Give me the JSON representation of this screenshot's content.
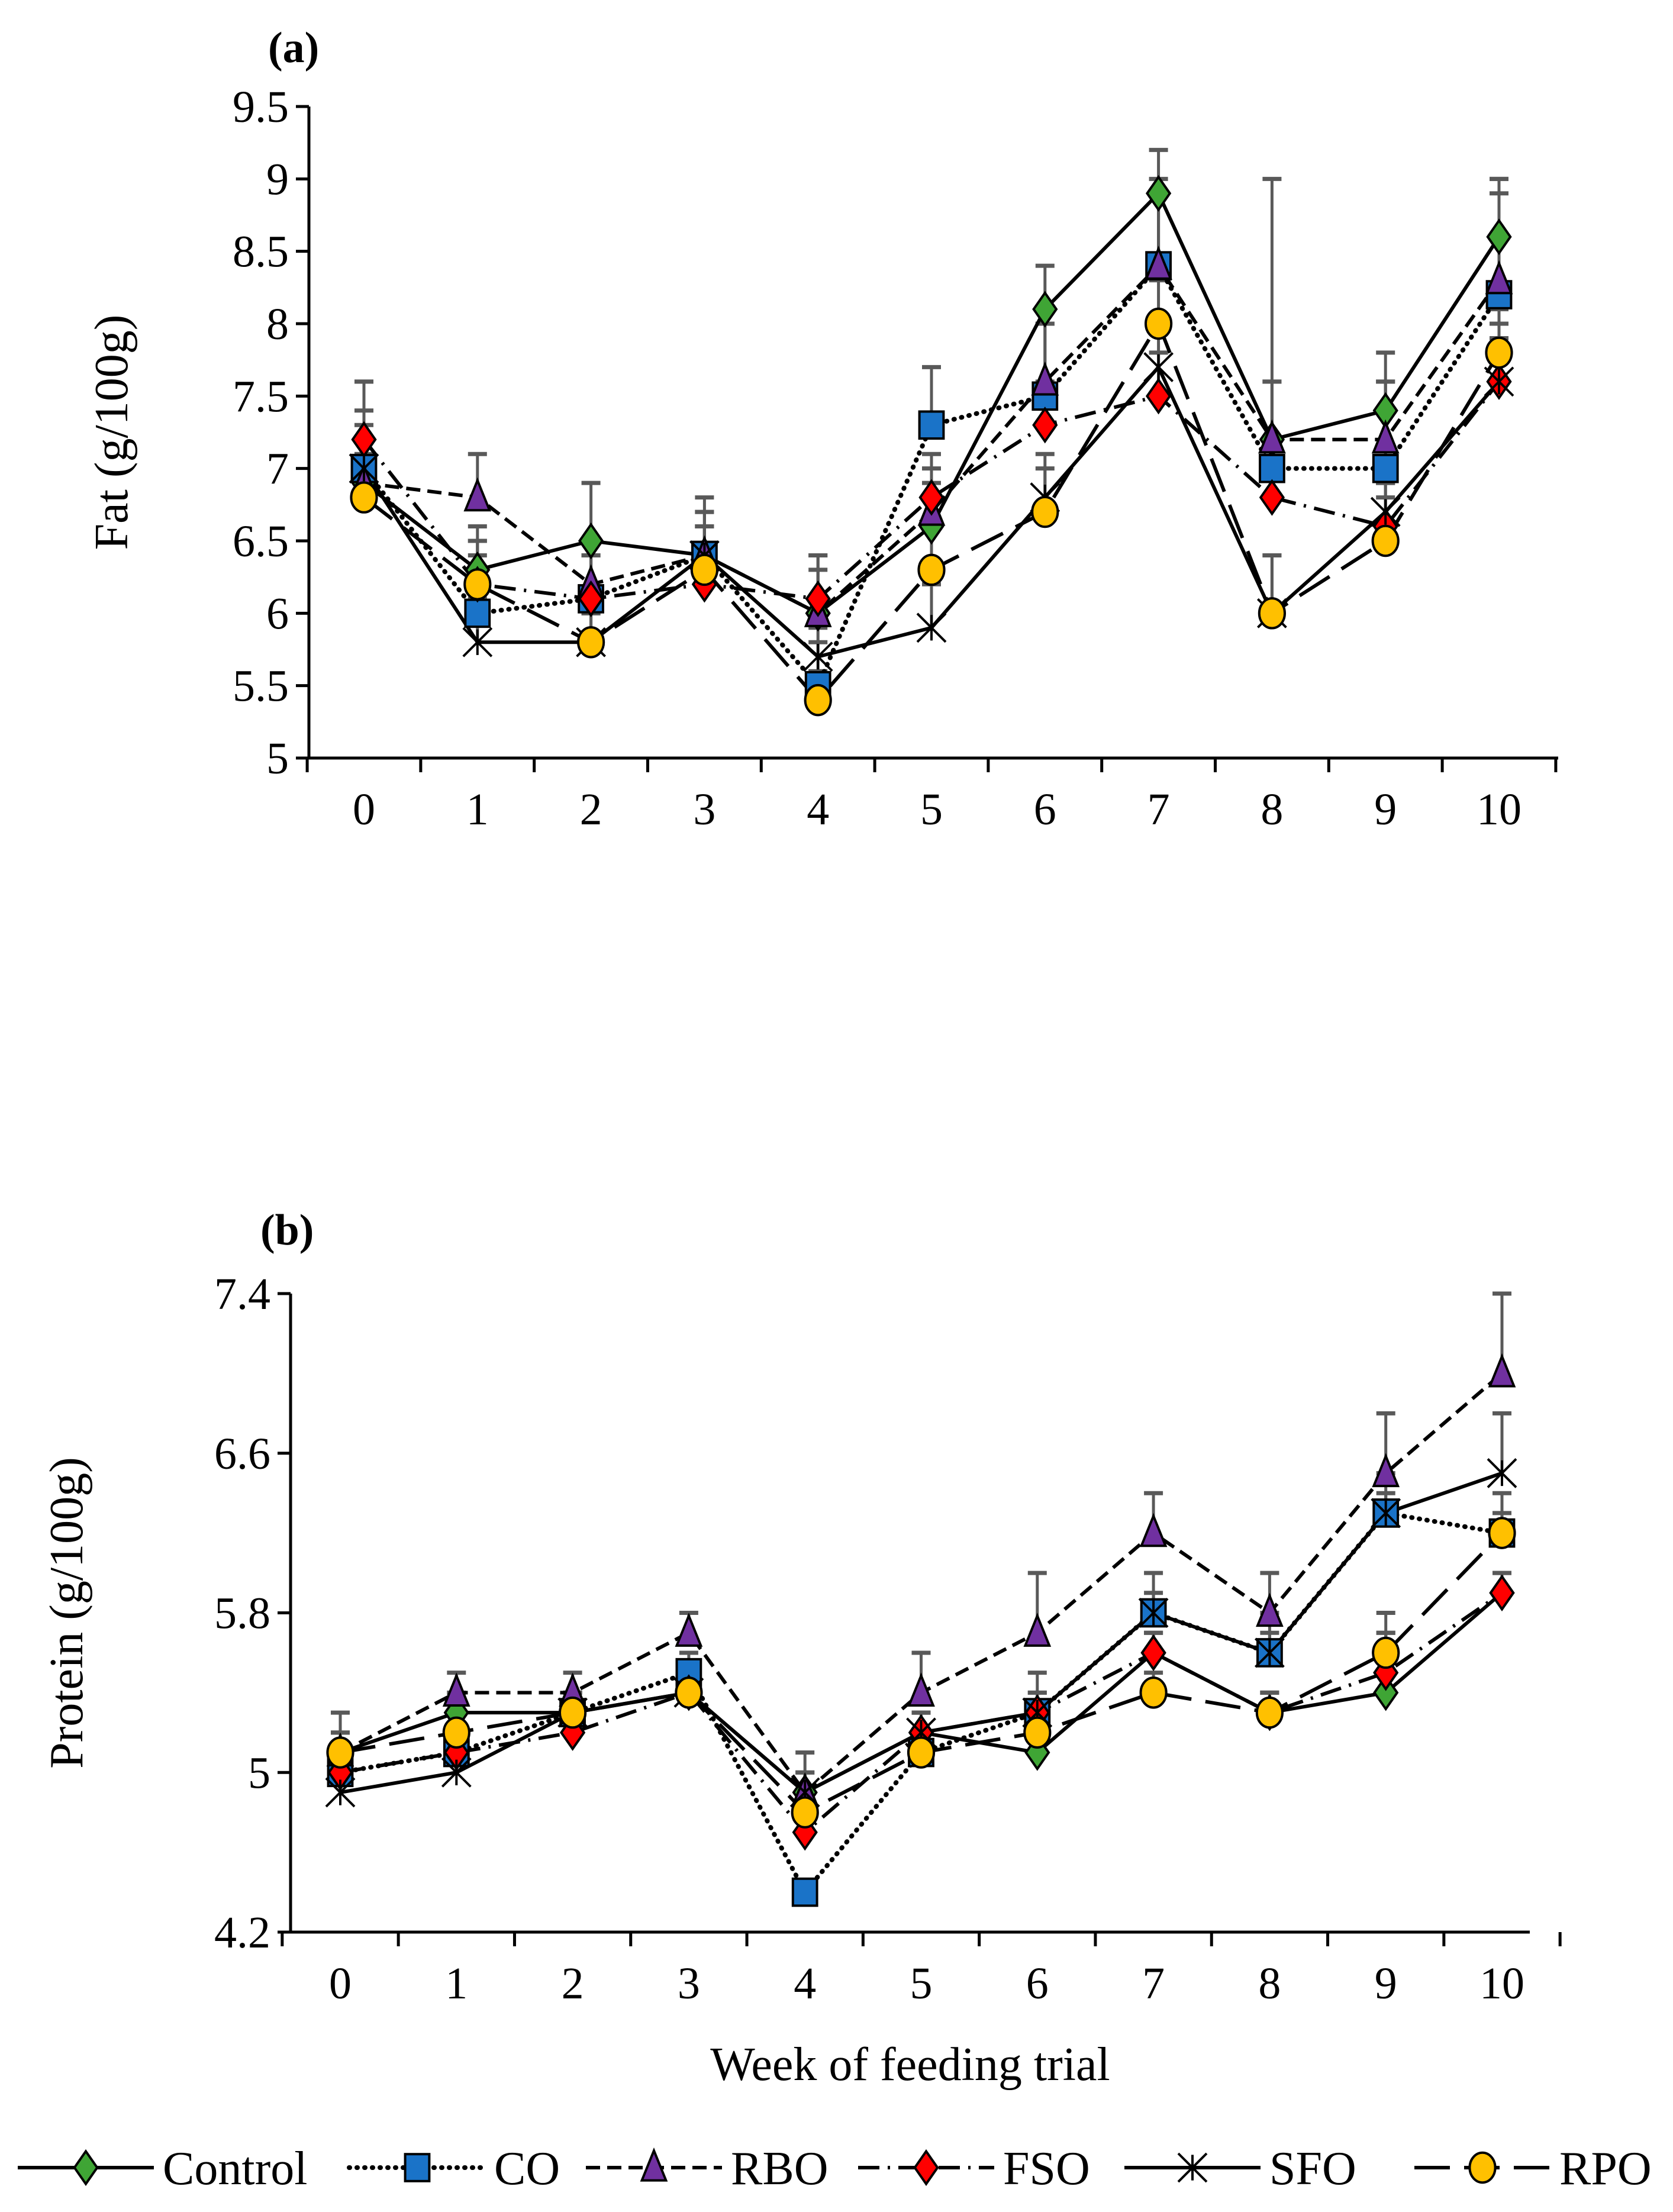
{
  "chart_data": [
    {
      "type": "line",
      "panel_label": "(a)",
      "title": "",
      "xlabel": "",
      "ylabel": "Fat (g/100g)",
      "x": [
        0,
        1,
        2,
        3,
        4,
        5,
        6,
        7,
        8,
        9,
        10
      ],
      "x_tick_labels": [
        "0",
        "1",
        "2",
        "3",
        "4",
        "5",
        "6",
        "7",
        "8",
        "9",
        "10"
      ],
      "ylim": [
        5,
        9.5
      ],
      "y_ticks": [
        5,
        5.5,
        6,
        6.5,
        7,
        7.5,
        8,
        8.5,
        9,
        9.5
      ],
      "y_tick_labels": [
        "5",
        "5.5",
        "6",
        "6.5",
        "7",
        "7.5",
        "8",
        "8.5",
        "9",
        "9.5"
      ],
      "grid": false,
      "series": [
        {
          "name": "Control",
          "values": [
            6.9,
            6.3,
            6.5,
            6.4,
            6.0,
            6.6,
            8.1,
            8.9,
            7.2,
            7.4,
            8.6
          ],
          "error": [
            0.4,
            0.3,
            0.4,
            0.3,
            0.3,
            0.3,
            0.3,
            0.3,
            0.4,
            0.4,
            0.4
          ]
        },
        {
          "name": "CO",
          "values": [
            7.0,
            6.0,
            6.1,
            6.4,
            5.5,
            7.3,
            7.5,
            8.4,
            7.0,
            7.0,
            8.2
          ],
          "error": [
            0.6,
            0.4,
            0.3,
            0.4,
            0.3,
            0.4,
            0.5,
            0.6,
            2.0,
            0.6,
            0.8
          ]
        },
        {
          "name": "RBO",
          "values": [
            6.9,
            6.8,
            6.2,
            6.4,
            6.0,
            6.7,
            7.6,
            8.4,
            7.2,
            7.2,
            8.3
          ],
          "error": [
            0.5,
            0.3,
            0.3,
            0.3,
            0.4,
            0.3,
            0.4,
            0.5,
            0.4,
            0.4,
            0.6
          ]
        },
        {
          "name": "FSO",
          "values": [
            7.2,
            6.2,
            6.1,
            6.2,
            6.1,
            6.8,
            7.3,
            7.5,
            6.8,
            6.6,
            7.6
          ],
          "error": [
            0.4,
            0.3,
            0.3,
            0.4,
            0.3,
            0.3,
            0.3,
            0.3,
            0.4,
            0.3,
            0.4
          ]
        },
        {
          "name": "SFO",
          "values": [
            7.0,
            5.8,
            5.8,
            6.4,
            5.7,
            5.9,
            6.8,
            7.7,
            6.0,
            6.7,
            7.6
          ],
          "error": [
            0.2,
            0.3,
            0.2,
            0.2,
            0.2,
            0.3,
            0.3,
            0.3,
            0.4,
            0.2,
            0.3
          ]
        },
        {
          "name": "RPO",
          "values": [
            6.8,
            6.2,
            5.8,
            6.3,
            5.4,
            6.3,
            6.7,
            8.0,
            6.0,
            6.5,
            7.8
          ],
          "error": [
            0.3,
            0.3,
            0.2,
            0.3,
            0.2,
            0.3,
            0.3,
            0.3,
            0.4,
            0.3,
            0.3
          ]
        }
      ]
    },
    {
      "type": "line",
      "panel_label": "(b)",
      "title": "",
      "xlabel": "Week of feeding trial",
      "ylabel": "Protein (g/100g)",
      "x": [
        0,
        1,
        2,
        3,
        4,
        5,
        6,
        7,
        8,
        9,
        10
      ],
      "x_tick_labels": [
        "0",
        "1",
        "2",
        "3",
        "4",
        "5",
        "6",
        "7",
        "8",
        "9",
        "10"
      ],
      "ylim": [
        4.2,
        7.4
      ],
      "y_ticks": [
        4.2,
        5,
        5.8,
        6.6,
        7.4
      ],
      "y_tick_labels": [
        "4.2",
        "5",
        "5.8",
        "6.6",
        "7.4"
      ],
      "grid": false,
      "series": [
        {
          "name": "Control",
          "values": [
            5.1,
            5.3,
            5.3,
            5.4,
            4.9,
            5.2,
            5.1,
            5.6,
            5.3,
            5.4,
            5.9
          ],
          "error": [
            0.1,
            0.1,
            0.1,
            0.1,
            0.1,
            0.1,
            0.1,
            0.1,
            0.1,
            0.3,
            0.1
          ]
        },
        {
          "name": "CO",
          "values": [
            5.0,
            5.1,
            5.3,
            5.5,
            4.4,
            5.1,
            5.3,
            5.8,
            5.6,
            6.3,
            6.2
          ],
          "error": [
            0.2,
            0.2,
            0.1,
            0.1,
            0.05,
            0.1,
            0.2,
            0.2,
            0.2,
            0.2,
            0.2
          ]
        },
        {
          "name": "RBO",
          "values": [
            5.1,
            5.4,
            5.4,
            5.7,
            4.9,
            5.4,
            5.7,
            6.2,
            5.8,
            6.5,
            7.0
          ],
          "error": [
            0.2,
            0.1,
            0.1,
            0.1,
            0.2,
            0.2,
            0.3,
            0.2,
            0.2,
            0.3,
            0.4
          ]
        },
        {
          "name": "FSO",
          "values": [
            5.0,
            5.1,
            5.2,
            5.4,
            4.7,
            5.2,
            5.3,
            5.6,
            5.3,
            5.5,
            5.9
          ],
          "error": [
            0.1,
            0.1,
            0.1,
            0.1,
            0.1,
            0.1,
            0.1,
            0.1,
            0.1,
            0.3,
            0.1
          ]
        },
        {
          "name": "SFO",
          "values": [
            4.9,
            5.0,
            5.3,
            5.4,
            4.9,
            5.2,
            5.3,
            5.8,
            5.6,
            6.3,
            6.5
          ],
          "error": [
            0.1,
            0.1,
            0.1,
            0.1,
            0.1,
            0.1,
            0.1,
            0.1,
            0.1,
            0.1,
            0.3
          ]
        },
        {
          "name": "RPO",
          "values": [
            5.1,
            5.2,
            5.3,
            5.4,
            4.8,
            5.1,
            5.2,
            5.4,
            5.3,
            5.6,
            6.2
          ],
          "error": [
            0.1,
            0.1,
            0.1,
            0.1,
            0.1,
            0.1,
            0.1,
            0.1,
            0.1,
            0.1,
            0.1
          ]
        }
      ]
    }
  ],
  "legend": {
    "placement": "bottom",
    "items": [
      {
        "name": "Control",
        "marker": "diamond",
        "color": "#3fa535",
        "line": "solid"
      },
      {
        "name": "CO",
        "marker": "square",
        "color": "#1a73c8",
        "line": "dotted"
      },
      {
        "name": "RBO",
        "marker": "triangle",
        "color": "#7030a0",
        "line": "dashed"
      },
      {
        "name": "FSO",
        "marker": "diamond",
        "color": "#ff0000",
        "line": "dash-dot"
      },
      {
        "name": "SFO",
        "marker": "star",
        "color": "#000000",
        "line": "solid"
      },
      {
        "name": "RPO",
        "marker": "circle",
        "color": "#ffc000",
        "line": "long-dash"
      }
    ]
  }
}
